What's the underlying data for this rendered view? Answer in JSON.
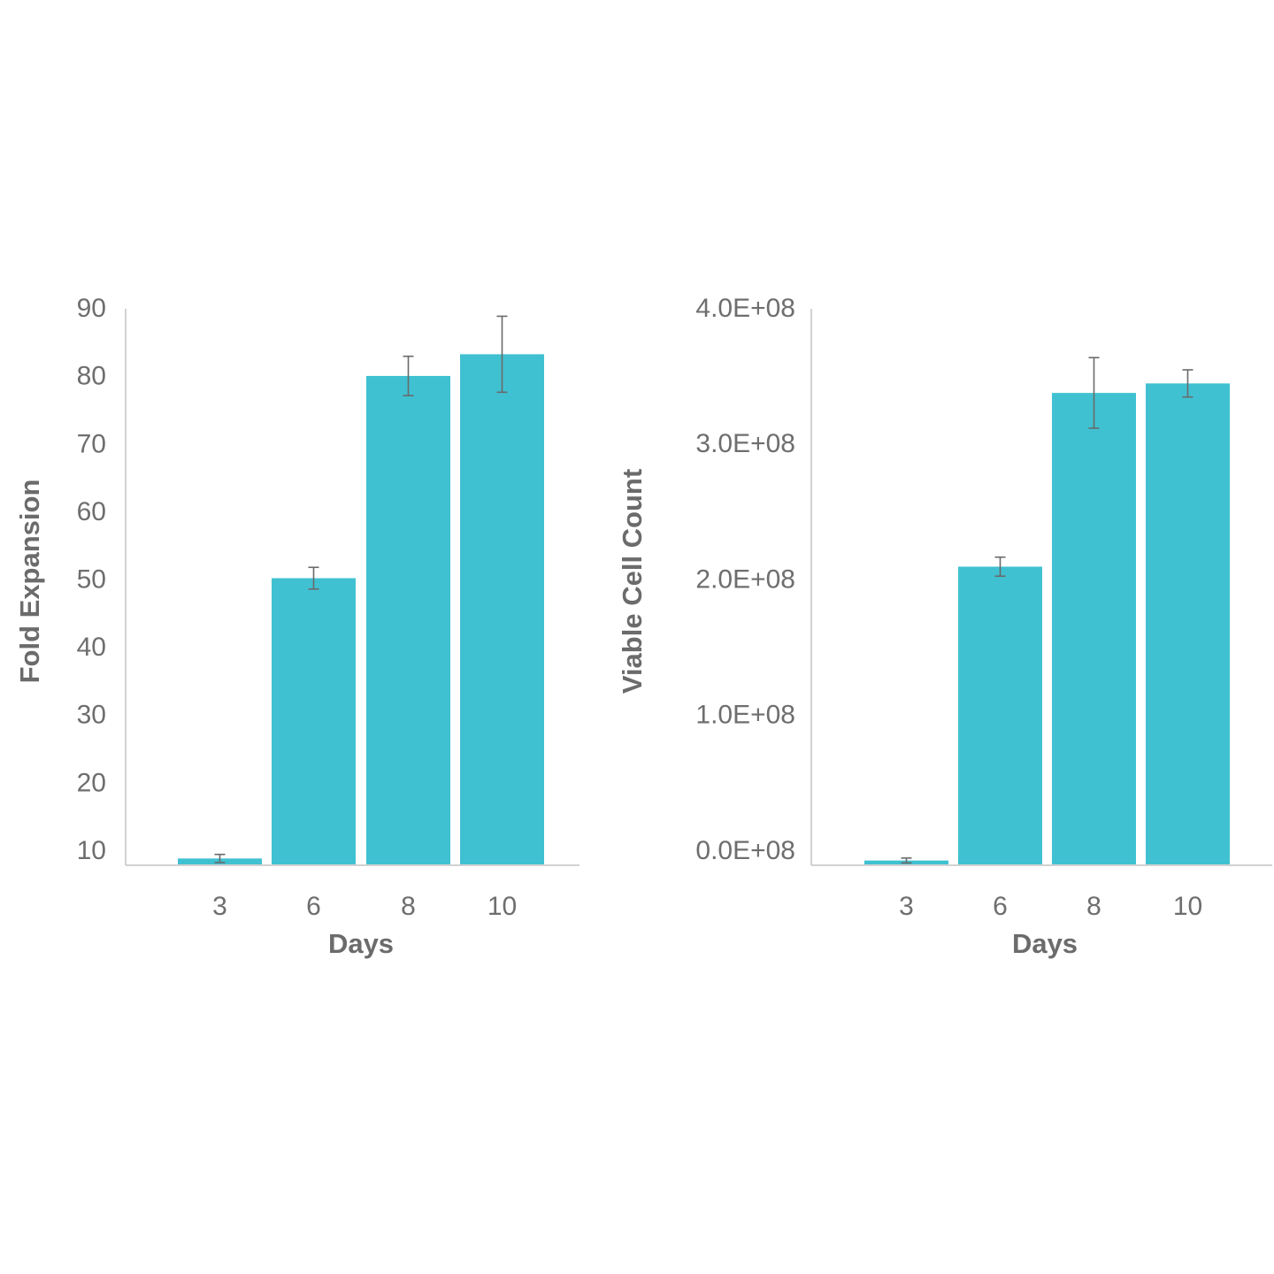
{
  "colors": {
    "bar": "#40c1d2",
    "error_bar": "#6a6a6a",
    "axis": "#c4c4c4",
    "text": "#6e6e6e"
  },
  "chart_data": [
    {
      "type": "bar",
      "categories": [
        "3",
        "6",
        "8",
        "10"
      ],
      "values": [
        1.0,
        42.3,
        72.1,
        75.3
      ],
      "error": [
        0.6,
        1.6,
        2.9,
        5.6
      ],
      "xlabel": "Days",
      "ylabel": "Fold Expansion",
      "yticks": [
        "10",
        "20",
        "30",
        "40",
        "50",
        "60",
        "70",
        "80",
        "90"
      ],
      "ylim": [
        0,
        82
      ],
      "grid": false,
      "legend": "none"
    },
    {
      "type": "bar",
      "categories": [
        "3",
        "6",
        "8",
        "10"
      ],
      "values": [
        3500000,
        220000000,
        348000000,
        355000000
      ],
      "error": [
        1800000,
        7000000,
        26000000,
        10000000
      ],
      "xlabel": "Days",
      "ylabel": "Viable Cell Count",
      "yticks": [
        "0.0E+08",
        "1.0E+08",
        "2.0E+08",
        "3.0E+08",
        "4.0E+08"
      ],
      "ylim": [
        0,
        410000000
      ],
      "grid": false,
      "legend": "none"
    }
  ]
}
